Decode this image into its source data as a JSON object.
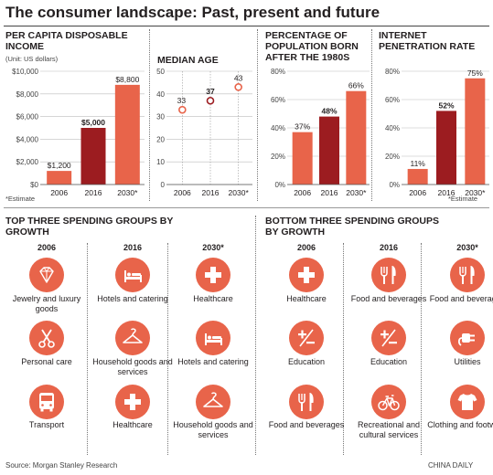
{
  "title": "The consumer landscape: Past, present and future",
  "colors": {
    "orange": "#e8644a",
    "dark_red": "#9c1c20",
    "text": "#231f20",
    "grid": "#bdbdbd"
  },
  "chart_data": [
    {
      "type": "bar",
      "title": "PER CAPITA DISPOSABLE INCOME",
      "subtitle": "(Unit: US dollars)",
      "categories": [
        "2006",
        "2016",
        "2030*"
      ],
      "values": [
        1200,
        5000,
        8800
      ],
      "data_labels": [
        "$1,200",
        "$5,000",
        "$8,800"
      ],
      "bar_colors": [
        "#e8644a",
        "#9c1c20",
        "#e8644a"
      ],
      "ylim": [
        0,
        10000
      ],
      "yticks": [
        0,
        2000,
        4000,
        6000,
        8000,
        10000
      ],
      "ytick_labels": [
        "$0",
        "$2,000",
        "$4,000",
        "$6,000",
        "$8,000",
        "$10,000"
      ],
      "note": "*Estimate",
      "grid": true
    },
    {
      "type": "scatter",
      "title": "MEDIAN AGE",
      "categories": [
        "2006",
        "2016",
        "2030*"
      ],
      "values": [
        33,
        37,
        43
      ],
      "data_labels": [
        "33",
        "37",
        "43"
      ],
      "point_colors": [
        "#e8644a",
        "#9c1c20",
        "#e8644a"
      ],
      "ylim": [
        0,
        50
      ],
      "yticks": [
        0,
        10,
        20,
        30,
        40,
        50
      ],
      "ytick_labels": [
        "0",
        "10",
        "20",
        "30",
        "40",
        "50"
      ],
      "grid": true
    },
    {
      "type": "bar",
      "title": "PERCENTAGE OF POPULATION BORN AFTER THE 1980S",
      "categories": [
        "2006",
        "2016",
        "2030*"
      ],
      "values": [
        37,
        48,
        66
      ],
      "data_labels": [
        "37%",
        "48%",
        "66%"
      ],
      "bar_colors": [
        "#e8644a",
        "#9c1c20",
        "#e8644a"
      ],
      "ylim": [
        0,
        80
      ],
      "yticks": [
        0,
        20,
        40,
        60,
        80
      ],
      "ytick_labels": [
        "0%",
        "20%",
        "40%",
        "60%",
        "80%"
      ],
      "grid": true
    },
    {
      "type": "bar",
      "title": "INTERNET PENETRATION RATE",
      "categories": [
        "2006",
        "2016",
        "2030*"
      ],
      "values": [
        11,
        52,
        75
      ],
      "data_labels": [
        "11%",
        "52%",
        "75%"
      ],
      "bar_colors": [
        "#e8644a",
        "#9c1c20",
        "#e8644a"
      ],
      "ylim": [
        0,
        80
      ],
      "yticks": [
        0,
        20,
        40,
        60,
        80
      ],
      "ytick_labels": [
        "0%",
        "20%",
        "40%",
        "60%",
        "80%"
      ],
      "note": "*Estimate",
      "grid": true
    },
    {
      "type": "table",
      "title": "TOP THREE SPENDING GROUPS BY GROWTH",
      "columns": [
        "2006",
        "2016",
        "2030*"
      ],
      "rows": [
        [
          "Jewelry and luxury goods",
          "Hotels and catering",
          "Healthcare"
        ],
        [
          "Personal care",
          "Household goods and services",
          "Hotels and catering"
        ],
        [
          "Transport",
          "Healthcare",
          "Household goods and services"
        ]
      ],
      "icons": [
        [
          "diamond-icon",
          "bed-icon",
          "medical-cross-icon"
        ],
        [
          "scissors-icon",
          "hanger-icon",
          "bed-icon"
        ],
        [
          "bus-icon",
          "medical-cross-icon",
          "hanger-icon"
        ]
      ]
    },
    {
      "type": "table",
      "title": "BOTTOM THREE SPENDING GROUPS BY GROWTH",
      "columns": [
        "2006",
        "2016",
        "2030*"
      ],
      "rows": [
        [
          "Healthcare",
          "Food and beverages",
          "Food and beverages"
        ],
        [
          "Education",
          "Education",
          "Utilities"
        ],
        [
          "Food and beverages",
          "Recreational and cultural services",
          "Clothing and footwear"
        ]
      ],
      "icons": [
        [
          "medical-cross-icon",
          "fork-knife-icon",
          "fork-knife-icon"
        ],
        [
          "plus-minus-icon",
          "plus-minus-icon",
          "plug-icon"
        ],
        [
          "fork-knife-icon",
          "bicycle-icon",
          "tshirt-icon"
        ]
      ]
    }
  ],
  "source": "Source: Morgan Stanley Research",
  "credit": "CHINA DAILY"
}
